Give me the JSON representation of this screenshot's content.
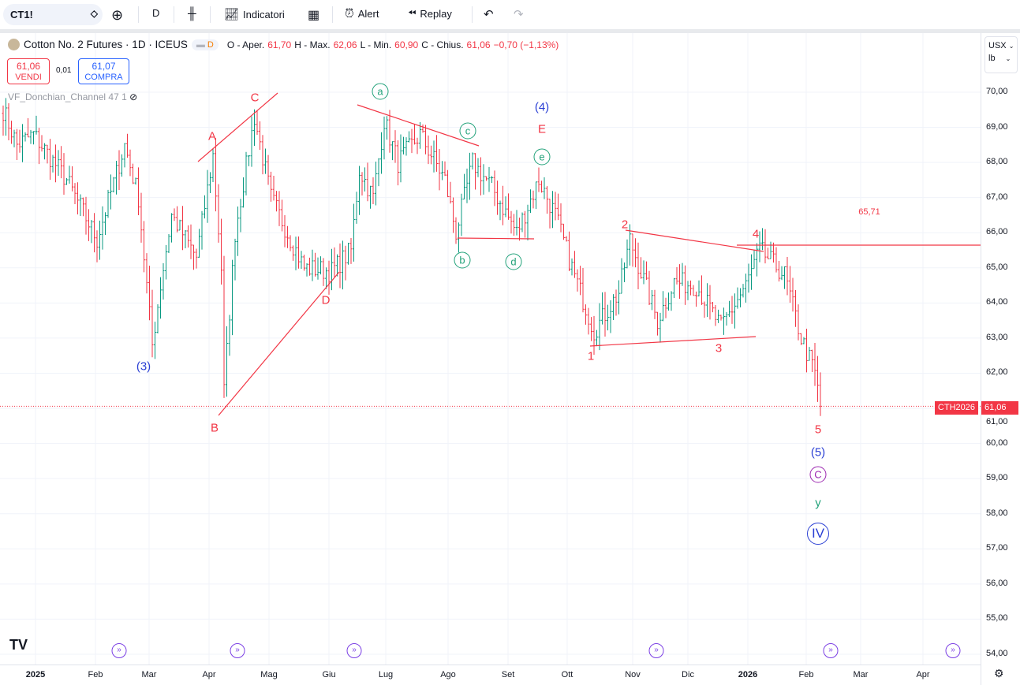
{
  "toolbar": {
    "symbol": "CT1!",
    "interval": "D",
    "indicators": "Indicatori",
    "alert": "Alert",
    "replay": "Replay"
  },
  "legend": {
    "title": "Cotton No. 2 Futures · 1D · ICEUS",
    "badge": "D",
    "o_label": "O - Aper.",
    "o": "61,70",
    "h_label": "H - Max.",
    "h": "62,06",
    "l_label": "L - Min.",
    "l": "60,90",
    "c_label": "C - Chius.",
    "c": "61,06",
    "change": "−0,70 (−1,13%)"
  },
  "trade": {
    "sell_price": "61,06",
    "sell_label": "VENDI",
    "spread": "0,01",
    "buy_price": "61,07",
    "buy_label": "COMPRA"
  },
  "indicator": {
    "name": "VF_Donchian_Channel 47 1"
  },
  "units": {
    "currency": "USX",
    "unit": "lb"
  },
  "price_axis": [
    "70,00",
    "69,00",
    "68,00",
    "67,00",
    "66,00",
    "65,00",
    "64,00",
    "63,00",
    "62,00",
    "61,00",
    "60,00",
    "59,00",
    "58,00",
    "57,00",
    "56,00",
    "55,00",
    "54,00"
  ],
  "time_axis": [
    "2025",
    "Feb",
    "Mar",
    "Apr",
    "Mag",
    "Giu",
    "Lug",
    "Ago",
    "Set",
    "Ott",
    "Nov",
    "Dic",
    "2026",
    "Feb",
    "Mar",
    "Apr"
  ],
  "last_price": {
    "ticker": "CTH2026",
    "value": "61,06"
  },
  "annotations": [
    "(3)",
    "A",
    "B",
    "C",
    "D",
    "a",
    "b",
    "c",
    "d",
    "e",
    "(4)",
    "E",
    "1",
    "2",
    "3",
    "4",
    "65,71",
    "5",
    "(5)",
    "C",
    "y",
    "IV"
  ],
  "colors": {
    "up": "#089981",
    "down": "#f23645",
    "wave_blue": "#2a3fd4",
    "wave_green": "#22a27a",
    "purple": "#9c27b0"
  },
  "chart_data": {
    "type": "ohlc",
    "ylim": [
      54,
      70
    ],
    "price_waypoints": [
      [
        0,
        69.5
      ],
      [
        5,
        68.5
      ],
      [
        11,
        68.8
      ],
      [
        23,
        67.5
      ],
      [
        34,
        65.8
      ],
      [
        44,
        68.5
      ],
      [
        49,
        67
      ],
      [
        54,
        62.8
      ],
      [
        57,
        64.5
      ],
      [
        61,
        66.5
      ],
      [
        70,
        65.3
      ],
      [
        76,
        68.2
      ],
      [
        79,
        65
      ],
      [
        80,
        61.5
      ],
      [
        84,
        66
      ],
      [
        91,
        69.3
      ],
      [
        97,
        67
      ],
      [
        103,
        66
      ],
      [
        109,
        65
      ],
      [
        119,
        64.9
      ],
      [
        126,
        65.5
      ],
      [
        129,
        67.8
      ],
      [
        134,
        67
      ],
      [
        138,
        69.2
      ],
      [
        143,
        68
      ],
      [
        151,
        68.8
      ],
      [
        160,
        67.5
      ],
      [
        164,
        66
      ],
      [
        170,
        68
      ],
      [
        177,
        67.3
      ],
      [
        186,
        66
      ],
      [
        194,
        67.5
      ],
      [
        200,
        66.5
      ],
      [
        206,
        65
      ],
      [
        214,
        63.2
      ],
      [
        223,
        64.3
      ],
      [
        227,
        65.8
      ],
      [
        237,
        63.5
      ],
      [
        243,
        64.6
      ],
      [
        251,
        64.5
      ],
      [
        260,
        63.3
      ],
      [
        269,
        64.5
      ],
      [
        274,
        65.5
      ],
      [
        283,
        64.8
      ],
      [
        289,
        63
      ],
      [
        294,
        62
      ],
      [
        296,
        61.06
      ]
    ],
    "last": 61.06,
    "resistance": 65.71
  }
}
